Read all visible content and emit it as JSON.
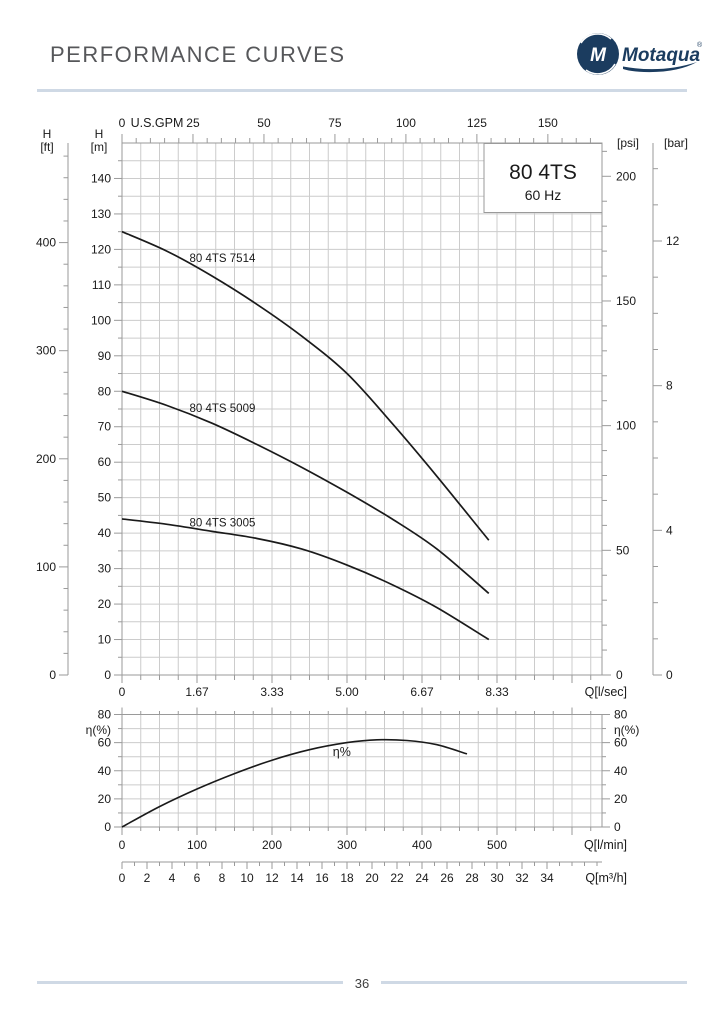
{
  "header": {
    "title": "PERFORMANCE CURVES",
    "brand": "Motaqua",
    "brand_registered": "®"
  },
  "footer": {
    "page_number": "36"
  },
  "colors": {
    "grid": "#cccccc",
    "axis": "#9a9a9a",
    "curve": "#1a1a1a",
    "text": "#1a1a1a",
    "brand_navy": "#1b3c5f",
    "divider": "#cfd9e5",
    "title_text": "#56575a"
  },
  "chart_data": [
    {
      "type": "line",
      "title": "80 4TS",
      "subtitle": "60 Hz",
      "x_axis_lmin_max": 640,
      "y_axis_m_max": 150,
      "axes": {
        "top": {
          "label": "U.S.GPM",
          "majors": [
            0,
            25,
            50,
            75,
            100,
            125,
            150
          ],
          "minor_step": 5,
          "minor_max": 165
        },
        "bottom": {
          "label": "Q[l/sec]",
          "tick_labels": [
            "0",
            "1.67",
            "3.33",
            "5.00",
            "6.67",
            "8.33"
          ],
          "tick_lmin": [
            0,
            100,
            200,
            300,
            400,
            500
          ],
          "minor_step_lmin": 25
        },
        "left_inner": {
          "title": "H",
          "unit": "[m]",
          "major_step": 10,
          "max_label": 140,
          "minor_step": 5
        },
        "left_outer": {
          "title": "H",
          "unit": "[ft]",
          "majors": [
            0,
            100,
            200,
            300,
            400
          ],
          "minor_step": 20
        },
        "right_inner": {
          "unit": "[psi]",
          "majors": [
            0,
            50,
            100,
            150,
            200
          ],
          "minor_step": 10
        },
        "right_outer": {
          "unit": "[bar]",
          "majors": [
            0,
            4,
            8,
            12
          ],
          "minor_step": 1
        }
      },
      "series": [
        {
          "name": "80 4TS 7514",
          "label_at_lmin_m": [
            90,
            116.5
          ],
          "points_lmin_m": [
            [
              0,
              125
            ],
            [
              60,
              119.5
            ],
            [
              120,
              112.5
            ],
            [
              180,
              104.5
            ],
            [
              240,
              95.5
            ],
            [
              300,
              85
            ],
            [
              360,
              71
            ],
            [
              420,
              56
            ],
            [
              489,
              38
            ]
          ]
        },
        {
          "name": "80 4TS 5009",
          "label_at_lmin_m": [
            90,
            74.2
          ],
          "points_lmin_m": [
            [
              0,
              80
            ],
            [
              60,
              76
            ],
            [
              120,
              71
            ],
            [
              180,
              65
            ],
            [
              240,
              58.5
            ],
            [
              300,
              51.5
            ],
            [
              360,
              44
            ],
            [
              420,
              35.5
            ],
            [
              489,
              23
            ]
          ]
        },
        {
          "name": "80 4TS 3005",
          "label_at_lmin_m": [
            90,
            41.8
          ],
          "points_lmin_m": [
            [
              0,
              44
            ],
            [
              60,
              42.5
            ],
            [
              120,
              40.5
            ],
            [
              180,
              38.5
            ],
            [
              240,
              35.5
            ],
            [
              300,
              31
            ],
            [
              360,
              25.5
            ],
            [
              420,
              19
            ],
            [
              489,
              10
            ]
          ]
        }
      ]
    },
    {
      "type": "line",
      "y_axis": {
        "label": "η(%)",
        "majors": [
          0,
          20,
          40,
          60,
          80
        ],
        "minor_step": 10,
        "max": 80
      },
      "x_axis_lmin": {
        "label": "Q[l/min]",
        "majors": [
          0,
          100,
          200,
          300,
          400,
          500
        ],
        "minor_step": 25
      },
      "x_axis_m3h": {
        "label": "Q[m³/h]",
        "major_step": 2,
        "label_max": 34,
        "minor_step": 1
      },
      "series": [
        {
          "name": "η%",
          "label_at_lmin_pct": [
            281,
            50.5
          ],
          "points_lmin_pct": [
            [
              0,
              0
            ],
            [
              50,
              14.5
            ],
            [
              100,
              27
            ],
            [
              150,
              38
            ],
            [
              200,
              47.5
            ],
            [
              250,
              55
            ],
            [
              300,
              60
            ],
            [
              340,
              62
            ],
            [
              380,
              61.5
            ],
            [
              420,
              58.5
            ],
            [
              460,
              52
            ]
          ]
        }
      ]
    }
  ]
}
